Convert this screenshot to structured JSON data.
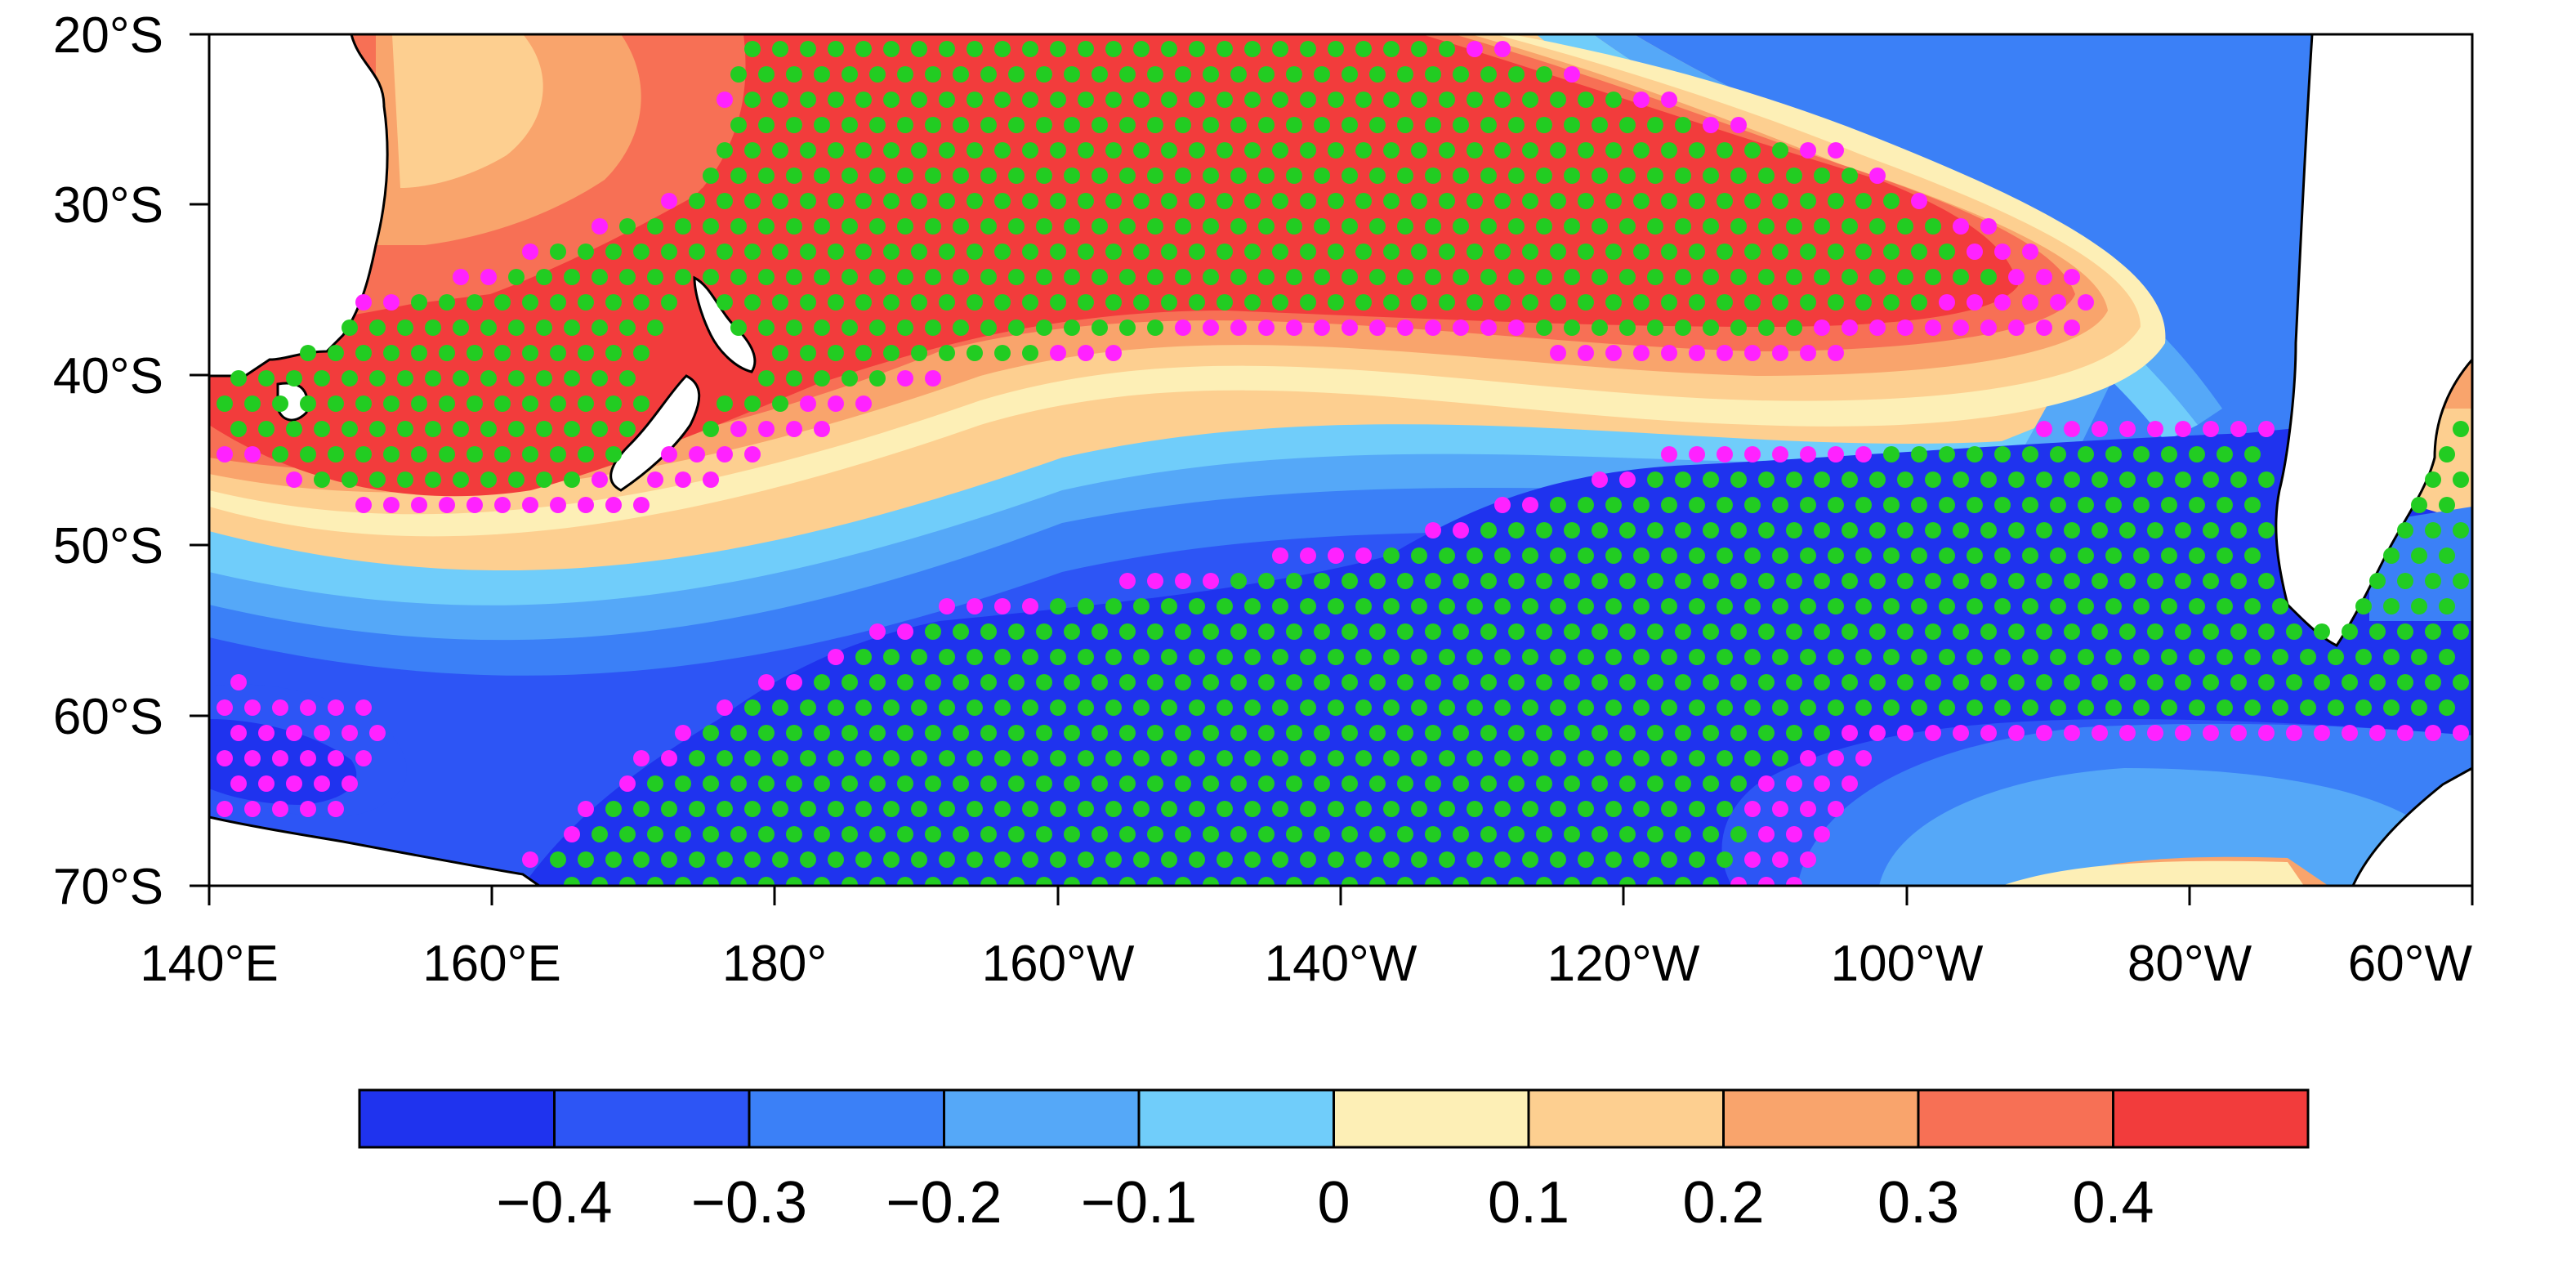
{
  "map": {
    "lat_labels": [
      "20°S",
      "30°S",
      "40°S",
      "50°S",
      "60°S",
      "70°S"
    ],
    "lon_labels": [
      "140°E",
      "160°E",
      "180°",
      "160°W",
      "140°W",
      "120°W",
      "100°W",
      "80°W",
      "60°W"
    ],
    "lat_range": [
      -70,
      -20
    ],
    "lon_range_east": [
      140,
      300
    ]
  },
  "colorbar": {
    "labels": [
      "−0.4",
      "−0.3",
      "−0.2",
      "−0.1",
      "0",
      "0.1",
      "0.2",
      "0.3",
      "0.4"
    ],
    "colors": [
      "#1f33ee",
      "#2d55f5",
      "#3b80f7",
      "#55a8f8",
      "#70cdfa",
      "#fdefb6",
      "#fdcf90",
      "#f9a46c",
      "#f77055",
      "#f23c3c"
    ]
  },
  "regions": [
    {
      "name": "positive-core",
      "level": 0.45,
      "color": "#f23c3c"
    },
    {
      "name": "negative-core",
      "level": -0.45,
      "color": "#1f33ee"
    }
  ],
  "stipple": {
    "green": "#22cc22",
    "magenta": "#ff22ff"
  }
}
